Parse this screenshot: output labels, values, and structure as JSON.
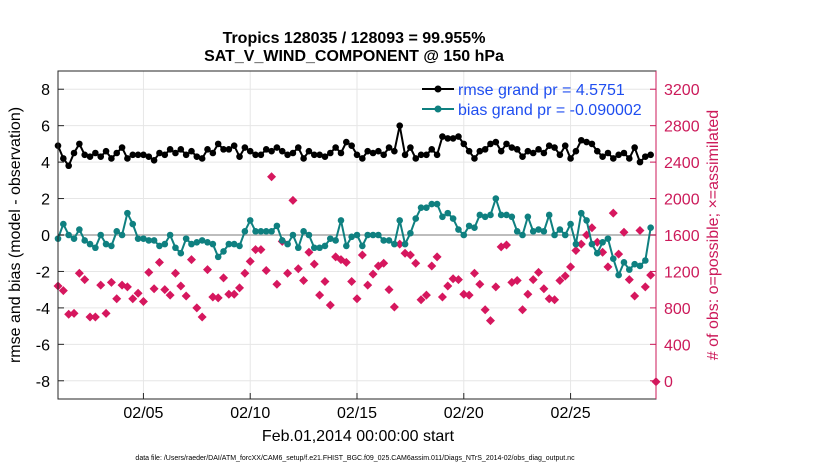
{
  "chart_data": {
    "type": "line",
    "title_line1": "Tropics 128035 / 128093 = 99.955%",
    "title_line2": "SAT_V_WIND_COMPONENT @ 150 hPa",
    "xlabel": "Feb.01,2014 00:00:00 start",
    "ylabel": "rmse and bias (model - observation)",
    "ylabel_right": "# of obs: o=possible; ×=assimilated",
    "footer": "data file: /Users/raeder/DAI/ATM_forcXX/CAM6_setup/f.e21.FHIST_BGC.f09_025.CAM6assim.011/Diags_NTrS_2014-02/obs_diag_output.nc",
    "xlim": [
      1.0,
      29.0
    ],
    "ylim": [
      -9,
      9
    ],
    "ylim_right": [
      -200,
      3400
    ],
    "x_ticks": [
      5,
      10,
      15,
      20,
      25
    ],
    "x_tick_labels": [
      "02/05",
      "02/10",
      "02/15",
      "02/20",
      "02/25"
    ],
    "y_ticks": [
      -8,
      -6,
      -4,
      -2,
      0,
      2,
      4,
      6,
      8
    ],
    "y_tick_labels": [
      "-8",
      "-6",
      "-4",
      "-2",
      "0",
      "2",
      "4",
      "6",
      "8"
    ],
    "y_right_ticks": [
      0,
      400,
      800,
      1200,
      1600,
      2000,
      2400,
      2800,
      3200
    ],
    "y_right_tick_labels": [
      "0",
      "400",
      "800",
      "1200",
      "1600",
      "2000",
      "2400",
      "2800",
      "3200"
    ],
    "zero_line": 0,
    "grid": true,
    "legend_position": "top-right",
    "colors": {
      "rmse": "#000000",
      "bias": "#0f8080",
      "obs": "#d6175e",
      "zero": "#bdbdbd",
      "grid": "#e6e6e6",
      "right_axis": "#cc1a5a"
    },
    "series": [
      {
        "name": "rmse grand pr = 4.5751",
        "axis": "left",
        "marker": "circle",
        "x": [
          1.0,
          1.25,
          1.5,
          1.75,
          2.0,
          2.25,
          2.5,
          2.75,
          3.0,
          3.25,
          3.5,
          3.75,
          4.0,
          4.25,
          4.5,
          4.75,
          5.0,
          5.25,
          5.5,
          5.75,
          6.0,
          6.25,
          6.5,
          6.75,
          7.0,
          7.25,
          7.5,
          7.75,
          8.0,
          8.25,
          8.5,
          8.75,
          9.0,
          9.25,
          9.5,
          9.75,
          10.0,
          10.25,
          10.5,
          10.75,
          11.0,
          11.25,
          11.5,
          11.75,
          12.0,
          12.25,
          12.5,
          12.75,
          13.0,
          13.25,
          13.5,
          13.75,
          14.0,
          14.25,
          14.5,
          14.75,
          15.0,
          15.25,
          15.5,
          15.75,
          16.0,
          16.25,
          16.5,
          16.75,
          17.0,
          17.25,
          17.5,
          17.75,
          18.0,
          18.25,
          18.5,
          18.75,
          19.0,
          19.25,
          19.5,
          19.75,
          20.0,
          20.25,
          20.5,
          20.75,
          21.0,
          21.25,
          21.5,
          21.75,
          22.0,
          22.25,
          22.5,
          22.75,
          23.0,
          23.25,
          23.5,
          23.75,
          24.0,
          24.25,
          24.5,
          24.75,
          25.0,
          25.25,
          25.5,
          25.75,
          26.0,
          26.25,
          26.5,
          26.75,
          27.0,
          27.25,
          27.5,
          27.75,
          28.0,
          28.25,
          28.5,
          28.75
        ],
        "values": [
          4.9,
          4.2,
          3.8,
          4.5,
          5.0,
          4.4,
          4.3,
          4.5,
          4.3,
          4.6,
          4.2,
          4.5,
          4.8,
          4.2,
          4.4,
          4.4,
          4.4,
          4.3,
          4.1,
          4.5,
          4.4,
          4.7,
          4.5,
          4.7,
          4.4,
          4.6,
          4.3,
          4.2,
          4.7,
          4.5,
          5.0,
          4.7,
          4.7,
          4.9,
          4.3,
          4.8,
          4.6,
          4.4,
          4.4,
          4.7,
          4.6,
          4.8,
          4.6,
          4.4,
          4.5,
          4.8,
          4.2,
          4.6,
          4.4,
          4.4,
          4.3,
          4.5,
          4.8,
          4.5,
          5.1,
          4.9,
          4.4,
          4.2,
          4.6,
          4.5,
          4.6,
          4.4,
          4.8,
          4.6,
          6.0,
          4.4,
          4.8,
          4.2,
          4.4,
          4.4,
          4.7,
          4.4,
          5.4,
          5.3,
          5.3,
          5.4,
          5.0,
          4.6,
          4.2,
          4.6,
          4.7,
          5.0,
          5.1,
          4.6,
          5.0,
          4.8,
          4.7,
          4.3,
          4.6,
          4.5,
          4.7,
          4.5,
          4.9,
          4.8,
          4.4,
          4.9,
          4.2,
          4.6,
          5.2,
          5.1,
          5.0,
          4.6,
          4.3,
          4.5,
          4.2,
          4.4,
          4.5,
          4.2,
          4.8,
          4.0,
          4.3,
          4.4
        ]
      },
      {
        "name": "bias grand pr = -0.090002",
        "axis": "left",
        "marker": "circle",
        "x": [
          1.0,
          1.25,
          1.5,
          1.75,
          2.0,
          2.25,
          2.5,
          2.75,
          3.0,
          3.25,
          3.5,
          3.75,
          4.0,
          4.25,
          4.5,
          4.75,
          5.0,
          5.25,
          5.5,
          5.75,
          6.0,
          6.25,
          6.5,
          6.75,
          7.0,
          7.25,
          7.5,
          7.75,
          8.0,
          8.25,
          8.5,
          8.75,
          9.0,
          9.25,
          9.5,
          9.75,
          10.0,
          10.25,
          10.5,
          10.75,
          11.0,
          11.25,
          11.5,
          11.75,
          12.0,
          12.25,
          12.5,
          12.75,
          13.0,
          13.25,
          13.5,
          13.75,
          14.0,
          14.25,
          14.5,
          14.75,
          15.0,
          15.25,
          15.5,
          15.75,
          16.0,
          16.25,
          16.5,
          16.75,
          17.0,
          17.25,
          17.5,
          17.75,
          18.0,
          18.25,
          18.5,
          18.75,
          19.0,
          19.25,
          19.5,
          19.75,
          20.0,
          20.25,
          20.5,
          20.75,
          21.0,
          21.25,
          21.5,
          21.75,
          22.0,
          22.25,
          22.5,
          22.75,
          23.0,
          23.25,
          23.5,
          23.75,
          24.0,
          24.25,
          24.5,
          24.75,
          25.0,
          25.25,
          25.5,
          25.75,
          26.0,
          26.25,
          26.5,
          26.75,
          27.0,
          27.25,
          27.5,
          27.75,
          28.0,
          28.25,
          28.5,
          28.75
        ],
        "values": [
          -0.2,
          0.6,
          0.0,
          -0.2,
          0.3,
          -0.3,
          -0.5,
          -0.7,
          0.0,
          -0.5,
          -0.6,
          0.2,
          0.0,
          1.2,
          0.6,
          -0.2,
          -0.2,
          -0.3,
          -0.3,
          -0.6,
          -0.5,
          0.0,
          -0.7,
          -1.0,
          -0.2,
          -0.5,
          -0.4,
          -0.3,
          -0.4,
          -0.5,
          -1.2,
          -0.9,
          -0.5,
          -0.5,
          -0.6,
          0.2,
          0.8,
          0.2,
          0.2,
          0.2,
          0.2,
          0.5,
          -0.3,
          -0.5,
          0.0,
          -0.7,
          0.2,
          0.0,
          -0.7,
          -0.7,
          -0.6,
          -0.2,
          -0.3,
          0.8,
          -0.6,
          -0.1,
          0.0,
          -0.6,
          0.0,
          0.0,
          0.0,
          -0.3,
          -0.3,
          -0.5,
          0.8,
          -0.5,
          0.1,
          0.9,
          1.5,
          1.5,
          1.7,
          1.7,
          1.0,
          1.2,
          0.9,
          0.3,
          0.0,
          0.5,
          0.4,
          1.1,
          1.0,
          1.1,
          2.0,
          1.1,
          1.1,
          1.0,
          0.2,
          0.0,
          1.0,
          0.2,
          0.3,
          0.2,
          1.1,
          0.0,
          0.3,
          0.0,
          0.6,
          -0.5,
          1.2,
          0.8,
          -0.5,
          -1.0,
          -0.4,
          -0.2,
          -1.3,
          -2.2,
          -1.5,
          -1.9,
          -1.6,
          -1.7,
          -1.4,
          0.4
        ]
      },
      {
        "name": "# of obs (possible / assimilated)",
        "axis": "right",
        "marker": "diamond",
        "x": [
          1.0,
          1.25,
          1.5,
          1.75,
          2.0,
          2.25,
          2.5,
          2.75,
          3.0,
          3.25,
          3.5,
          3.75,
          4.0,
          4.25,
          4.5,
          4.75,
          5.0,
          5.25,
          5.5,
          5.75,
          6.0,
          6.25,
          6.5,
          6.75,
          7.0,
          7.25,
          7.5,
          7.75,
          8.0,
          8.25,
          8.5,
          8.75,
          9.0,
          9.25,
          9.5,
          9.75,
          10.0,
          10.25,
          10.5,
          10.75,
          11.0,
          11.25,
          11.5,
          11.75,
          12.0,
          12.25,
          12.5,
          12.75,
          13.0,
          13.25,
          13.5,
          13.75,
          14.0,
          14.25,
          14.5,
          14.75,
          15.0,
          15.25,
          15.5,
          15.75,
          16.0,
          16.25,
          16.5,
          16.75,
          17.0,
          17.25,
          17.5,
          17.75,
          18.0,
          18.25,
          18.5,
          18.75,
          19.0,
          19.25,
          19.5,
          19.75,
          20.0,
          20.25,
          20.5,
          20.75,
          21.0,
          21.25,
          21.5,
          21.75,
          22.0,
          22.25,
          22.5,
          22.75,
          23.0,
          23.25,
          23.5,
          23.75,
          24.0,
          24.25,
          24.5,
          24.75,
          25.0,
          25.25,
          25.5,
          25.75,
          26.0,
          26.25,
          26.5,
          26.75,
          27.0,
          27.25,
          27.5,
          27.75,
          28.0,
          28.25,
          28.5,
          28.75,
          29.0
        ],
        "values": [
          1040,
          990,
          730,
          740,
          1180,
          1110,
          700,
          700,
          1050,
          740,
          1080,
          900,
          1050,
          1030,
          900,
          960,
          870,
          1190,
          1010,
          1300,
          1000,
          940,
          1180,
          1040,
          930,
          1330,
          800,
          700,
          1220,
          920,
          910,
          1130,
          950,
          950,
          1020,
          1180,
          1310,
          1440,
          1440,
          1210,
          2240,
          1060,
          1530,
          1180,
          1980,
          1230,
          1100,
          1410,
          1280,
          940,
          1090,
          830,
          1360,
          1330,
          1300,
          1090,
          900,
          1380,
          1050,
          1170,
          1260,
          1290,
          1000,
          810,
          1500,
          1400,
          1380,
          1290,
          890,
          940,
          1260,
          1360,
          920,
          1040,
          1120,
          1110,
          950,
          940,
          1180,
          1060,
          780,
          660,
          1030,
          1470,
          1490,
          1080,
          1100,
          780,
          950,
          1110,
          1190,
          1010,
          900,
          890,
          1100,
          1150,
          1250,
          1430,
          1500,
          1600,
          1680,
          1520,
          1410,
          1250,
          1840,
          1390,
          1630,
          1110,
          930,
          1650,
          1030,
          1160,
          -10
        ]
      }
    ]
  }
}
